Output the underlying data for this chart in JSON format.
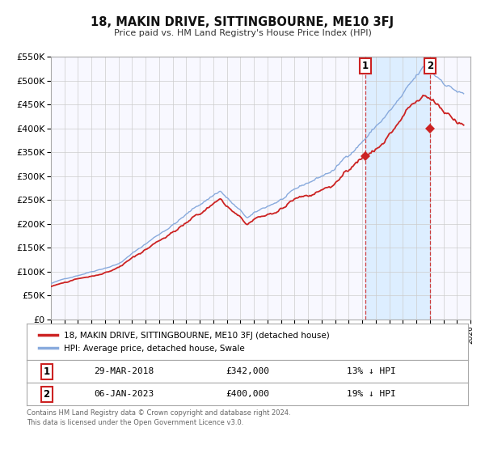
{
  "title": "18, MAKIN DRIVE, SITTINGBOURNE, ME10 3FJ",
  "subtitle": "Price paid vs. HM Land Registry's House Price Index (HPI)",
  "ylim": [
    0,
    550000
  ],
  "xlim_start": 1995,
  "xlim_end": 2026,
  "yticks": [
    0,
    50000,
    100000,
    150000,
    200000,
    250000,
    300000,
    350000,
    400000,
    450000,
    500000,
    550000
  ],
  "ytick_labels": [
    "£0",
    "£50K",
    "£100K",
    "£150K",
    "£200K",
    "£250K",
    "£300K",
    "£350K",
    "£400K",
    "£450K",
    "£500K",
    "£550K"
  ],
  "xticks": [
    1995,
    1996,
    1997,
    1998,
    1999,
    2000,
    2001,
    2002,
    2003,
    2004,
    2005,
    2006,
    2007,
    2008,
    2009,
    2010,
    2011,
    2012,
    2013,
    2014,
    2015,
    2016,
    2017,
    2018,
    2019,
    2020,
    2021,
    2022,
    2023,
    2024,
    2025,
    2026
  ],
  "marker1_x": 2018.23,
  "marker1_y": 342000,
  "marker2_x": 2023.02,
  "marker2_y": 400000,
  "marker1_label": "1",
  "marker2_label": "2",
  "marker1_date": "29-MAR-2018",
  "marker1_price": "£342,000",
  "marker1_hpi": "13% ↓ HPI",
  "marker2_date": "06-JAN-2023",
  "marker2_price": "£400,000",
  "marker2_hpi": "19% ↓ HPI",
  "vline1_x": 2018.23,
  "vline2_x": 2023.02,
  "shade_color": "#ddeeff",
  "hpi_color": "#88aadd",
  "price_color": "#cc2222",
  "marker_color": "#cc2222",
  "grid_color": "#cccccc",
  "legend_label1": "18, MAKIN DRIVE, SITTINGBOURNE, ME10 3FJ (detached house)",
  "legend_label2": "HPI: Average price, detached house, Swale",
  "footer1": "Contains HM Land Registry data © Crown copyright and database right 2024.",
  "footer2": "This data is licensed under the Open Government Licence v3.0.",
  "background_color": "#ffffff",
  "plot_bg_color": "#f8f8ff"
}
